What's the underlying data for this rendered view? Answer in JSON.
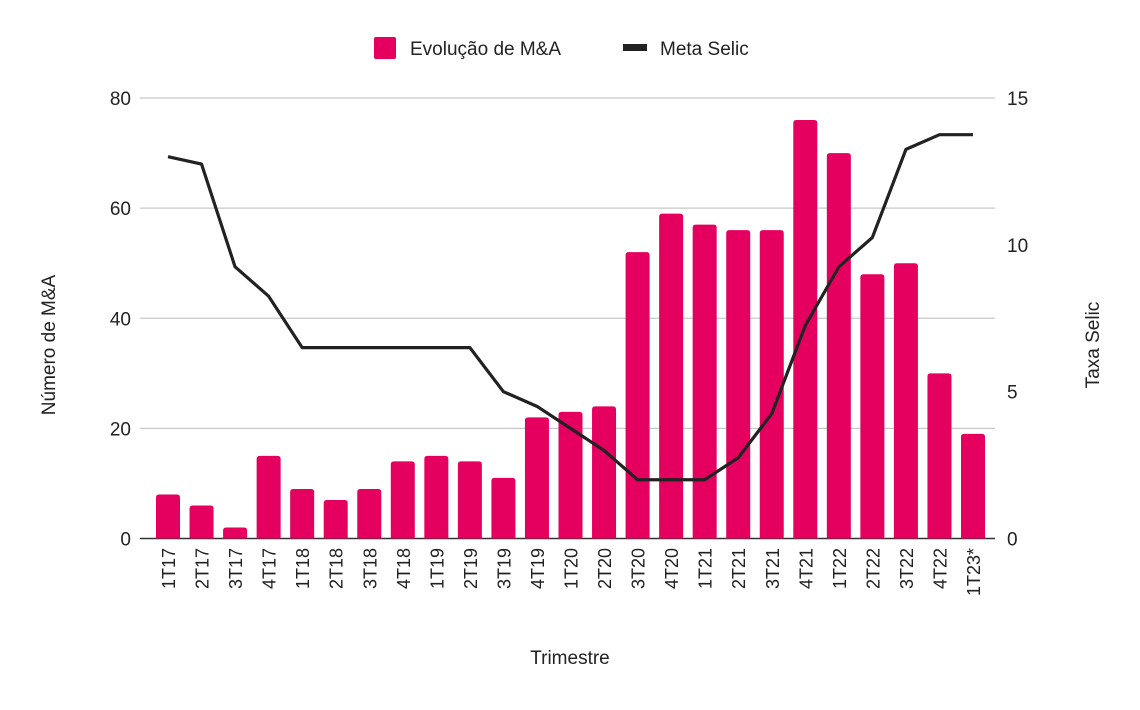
{
  "chart_data": {
    "type": "bar+line",
    "xlabel": "Trimestre",
    "ylabel": "Número de M&A",
    "y2label": "Taxa Selic",
    "ylim": [
      0,
      80
    ],
    "y2lim": [
      0,
      15
    ],
    "yticks": [
      0,
      20,
      40,
      60,
      80
    ],
    "y2ticks": [
      0,
      5,
      10,
      15
    ],
    "grid": true,
    "legend_position": "top",
    "categories": [
      "1T17",
      "2T17",
      "3T17",
      "4T17",
      "1T18",
      "2T18",
      "3T18",
      "4T18",
      "1T19",
      "2T19",
      "3T19",
      "4T19",
      "1T20",
      "2T20",
      "3T20",
      "4T20",
      "1T21",
      "2T21",
      "3T21",
      "4T21",
      "1T22",
      "2T22",
      "3T22",
      "4T22",
      "1T23*"
    ],
    "series": [
      {
        "name": "Evolução de M&A",
        "type": "bar",
        "axis": "left",
        "color": "#E5005F",
        "values": [
          8,
          6,
          2,
          15,
          9,
          7,
          9,
          14,
          15,
          14,
          11,
          22,
          23,
          24,
          52,
          59,
          57,
          56,
          56,
          76,
          70,
          48,
          50,
          30,
          19
        ]
      },
      {
        "name": "Meta Selic",
        "type": "line",
        "axis": "right",
        "color": "#222222",
        "values": [
          13,
          12.75,
          9.25,
          8.25,
          6.5,
          6.5,
          6.5,
          6.5,
          6.5,
          6.5,
          5,
          4.5,
          3.75,
          3,
          2,
          2,
          2,
          2.75,
          4.25,
          7.25,
          9.25,
          10.25,
          13.25,
          13.75,
          13.75
        ]
      }
    ]
  }
}
